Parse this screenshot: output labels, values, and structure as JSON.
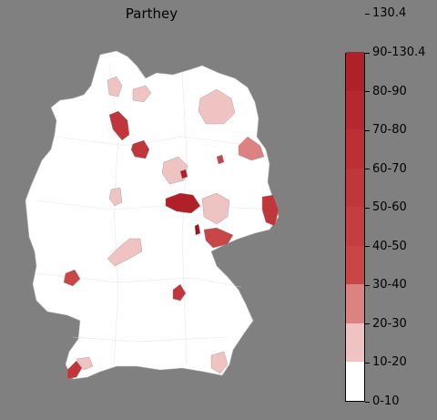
{
  "title": "Parthey",
  "colorbar": {
    "labels": [
      "0-10",
      "10-20",
      "20-30",
      "30-40",
      "40-50",
      "50-60",
      "60-70",
      "70-80",
      "80-90",
      "90-130.4",
      "130.4"
    ],
    "colors": [
      "#ffffff",
      "#f0c3c3",
      "#dc8282",
      "#c94646",
      "#c43d40",
      "#c0373b",
      "#bb2f35",
      "#b6272f",
      "#b02029",
      "#a01022"
    ]
  },
  "regions": [
    {
      "name": "region-north-hamburg",
      "level": 1
    },
    {
      "name": "region-northeast-1",
      "level": 1
    },
    {
      "name": "region-mecklenburg",
      "level": 1
    },
    {
      "name": "region-brandenburg-east",
      "level": 2
    },
    {
      "name": "region-bremen",
      "level": 5
    },
    {
      "name": "region-hanover",
      "level": 5
    },
    {
      "name": "region-saxony-anhalt-1",
      "level": 1
    },
    {
      "name": "region-saxony-anhalt-2",
      "level": 8
    },
    {
      "name": "region-thuringia",
      "level": 8
    },
    {
      "name": "region-saxony-west",
      "level": 1
    },
    {
      "name": "region-saxony-east",
      "level": 5
    },
    {
      "name": "region-saxony-south",
      "level": 3
    },
    {
      "name": "region-hesse-north",
      "level": 1
    },
    {
      "name": "region-hesse-south",
      "level": 1
    },
    {
      "name": "region-rhineland",
      "level": 3
    },
    {
      "name": "region-bavaria-north",
      "level": 5
    },
    {
      "name": "region-baden-south",
      "level": 5
    },
    {
      "name": "region-lake-constance",
      "level": 1
    },
    {
      "name": "region-bavaria-south",
      "level": 1
    },
    {
      "name": "region-brandenburg-small",
      "level": 3
    },
    {
      "name": "region-saxony-small",
      "level": 9
    }
  ]
}
